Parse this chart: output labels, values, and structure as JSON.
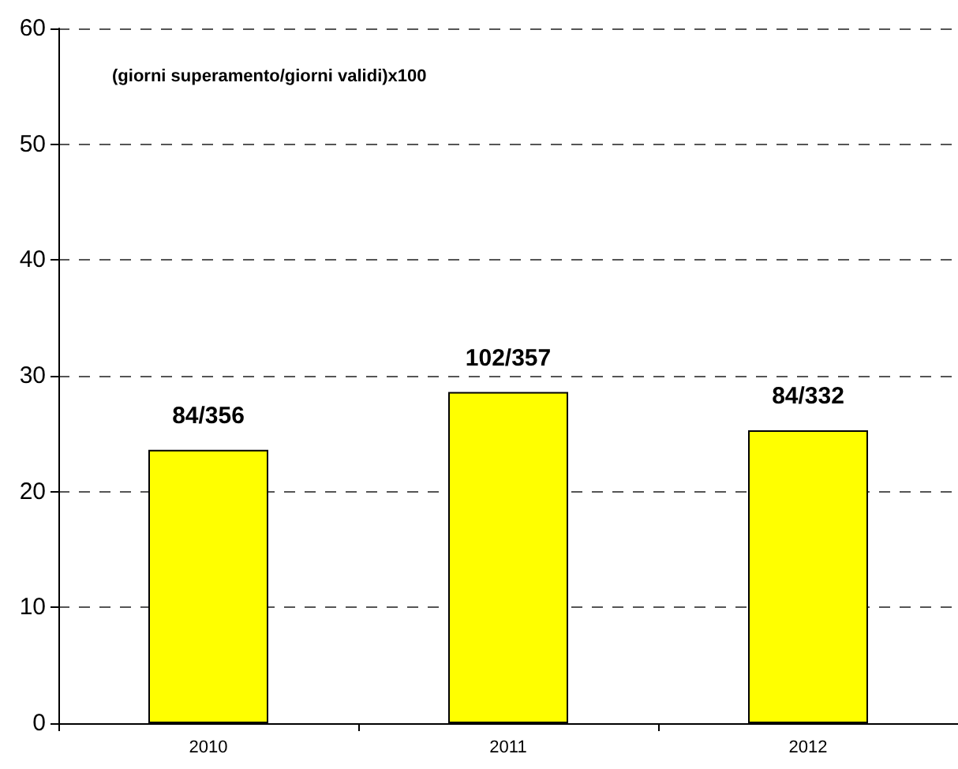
{
  "chart_data": {
    "type": "bar",
    "categories": [
      "2010",
      "2011",
      "2012"
    ],
    "values": [
      23.6,
      28.6,
      25.3
    ],
    "color": "#ffff00",
    "value_labels": [
      "84/356",
      "102/357",
      "84/332"
    ],
    "annotations": [
      "(giorni superamento/giorni validi)x100"
    ],
    "ylim": [
      0,
      60
    ],
    "yticks": [
      0,
      10,
      20,
      30,
      40,
      50,
      60
    ],
    "grid": "y",
    "line_style": "dashed"
  }
}
